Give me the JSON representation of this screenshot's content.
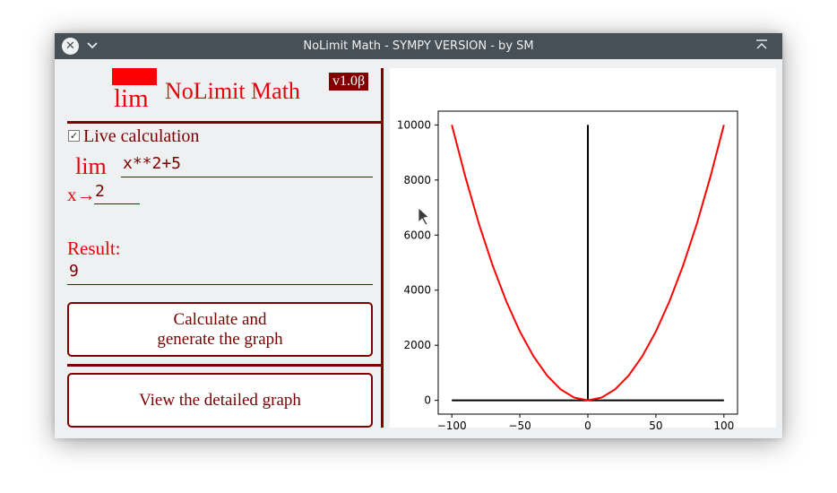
{
  "window": {
    "title": "NoLimit Math - SYMPY VERSION - by SM",
    "close_icon": "close-icon",
    "menu_icon": "chevron-down-icon",
    "keep_above_icon": "keep-above-icon"
  },
  "header": {
    "logo_text": "lim",
    "app_name": "NoLimit Math",
    "version": "v1.0β",
    "logo_color": "#ff0000"
  },
  "form": {
    "live_checked": true,
    "live_check_mark": "✓",
    "live_label": "Live calculation",
    "lim_label": "lim",
    "expression_value": "x**2+5",
    "approach_label": "x→",
    "point_value": "2",
    "result_label": "Result:",
    "result_value": "9"
  },
  "buttons": {
    "calculate_line1": "Calculate and",
    "calculate_line2": "generate the graph",
    "view_detailed": "View the detailed graph"
  },
  "colors": {
    "accent": "#800000",
    "title_red": "#e8000a",
    "curve": "#ff0000",
    "axes_lines": "#000000",
    "titlebar": "#475057",
    "window_bg": "#eff0f1"
  },
  "chart_data": {
    "type": "line",
    "title": "",
    "xlabel": "",
    "ylabel": "",
    "xlim": [
      -110,
      110
    ],
    "ylim": [
      -500,
      10500
    ],
    "xticks": [
      -100,
      -50,
      0,
      50,
      100
    ],
    "xtick_labels": [
      "−100",
      "−50",
      "0",
      "50",
      "100"
    ],
    "yticks": [
      0,
      2000,
      4000,
      6000,
      8000,
      10000
    ],
    "ytick_labels": [
      "0",
      "2000",
      "4000",
      "6000",
      "8000",
      "10000"
    ],
    "grid": false,
    "legend": "none",
    "series": [
      {
        "color": "#ff0000",
        "x": [
          -100,
          -90,
          -80,
          -70,
          -60,
          -50,
          -40,
          -30,
          -20,
          -10,
          0,
          10,
          20,
          30,
          40,
          50,
          60,
          70,
          80,
          90,
          100
        ],
        "y": [
          10000,
          8100,
          6400,
          4900,
          3600,
          2500,
          1600,
          900,
          400,
          100,
          0,
          100,
          400,
          900,
          1600,
          2500,
          3600,
          4900,
          6400,
          8100,
          10000
        ]
      }
    ],
    "reference_lines": [
      {
        "color": "#000000",
        "x": [
          -100,
          100
        ],
        "y": [
          0,
          0
        ]
      },
      {
        "color": "#000000",
        "x": [
          0,
          0
        ],
        "y": [
          0,
          10000
        ]
      }
    ]
  }
}
